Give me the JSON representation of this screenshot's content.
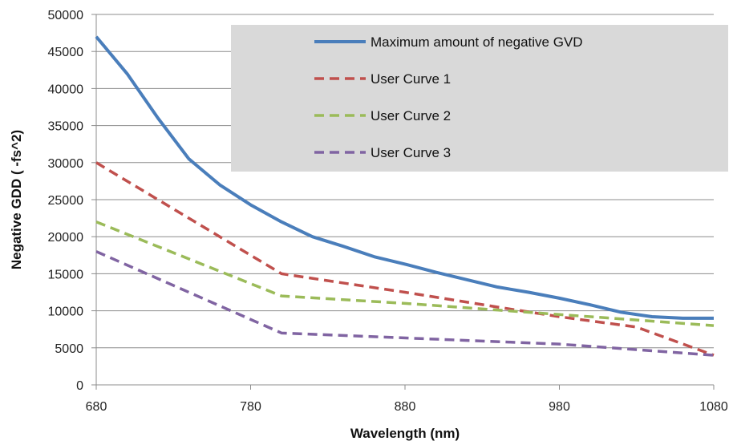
{
  "chart_data": {
    "type": "line",
    "title": "",
    "xlabel": "Wavelength (nm)",
    "ylabel": "Negative GDD ( -fs^2)",
    "xlim": [
      680,
      1080
    ],
    "ylim": [
      0,
      50000
    ],
    "x_ticks": [
      680,
      780,
      880,
      980,
      1080
    ],
    "y_ticks": [
      0,
      5000,
      10000,
      15000,
      20000,
      25000,
      30000,
      35000,
      40000,
      45000,
      50000
    ],
    "grid": "horizontal",
    "legend_position": "top-right",
    "series": [
      {
        "name": "Maximum amount of negative GVD",
        "color": "#4a7ebb",
        "style": "solid",
        "x": [
          680,
          700,
          720,
          740,
          760,
          780,
          800,
          820,
          840,
          860,
          880,
          900,
          920,
          940,
          960,
          980,
          1000,
          1020,
          1040,
          1060,
          1080
        ],
        "y": [
          47000,
          42000,
          36000,
          30500,
          27000,
          24300,
          22000,
          20000,
          18700,
          17300,
          16300,
          15200,
          14200,
          13200,
          12500,
          11700,
          10800,
          9800,
          9200,
          9000,
          9000
        ]
      },
      {
        "name": "User Curve 1",
        "color": "#c0504d",
        "style": "dashed",
        "x": [
          680,
          800,
          880,
          940,
          980,
          1030,
          1080
        ],
        "y": [
          30000,
          15000,
          12500,
          10500,
          9200,
          7800,
          4000
        ]
      },
      {
        "name": "User Curve 2",
        "color": "#9bbb59",
        "style": "dashed",
        "x": [
          680,
          800,
          880,
          1080
        ],
        "y": [
          22000,
          12000,
          11000,
          8000
        ]
      },
      {
        "name": "User Curve 3",
        "color": "#8064a2",
        "style": "dashed",
        "x": [
          680,
          800,
          980,
          1080
        ],
        "y": [
          18000,
          7000,
          5500,
          4000
        ]
      }
    ]
  }
}
